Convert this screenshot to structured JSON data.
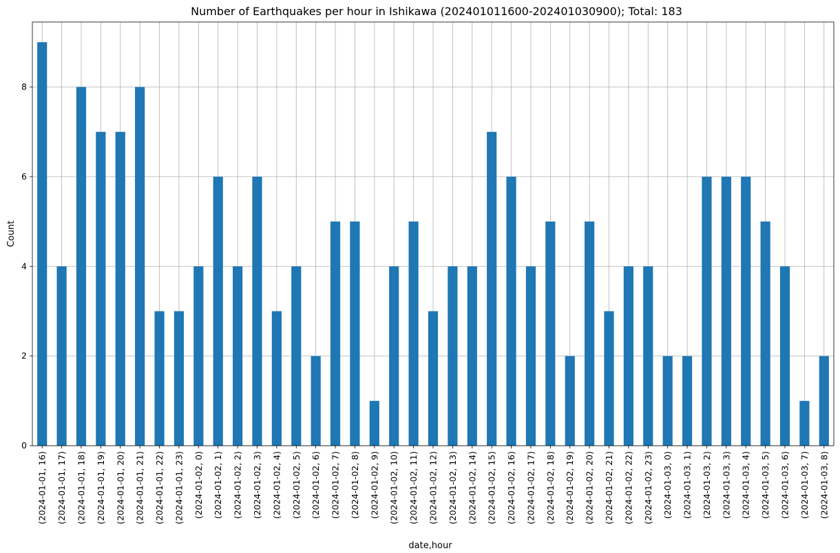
{
  "chart_data": {
    "type": "bar",
    "title": "Number of Earthquakes per hour in Ishikawa (202401011600-202401030900); Total: 183",
    "xlabel": "date,hour",
    "ylabel": "Count",
    "ylim": [
      0,
      9.45
    ],
    "yticks": [
      0,
      2,
      4,
      6,
      8
    ],
    "grid": true,
    "bar_color": "#1f77b4",
    "categories": [
      "(2024-01-01, 16)",
      "(2024-01-01, 17)",
      "(2024-01-01, 18)",
      "(2024-01-01, 19)",
      "(2024-01-01, 20)",
      "(2024-01-01, 21)",
      "(2024-01-01, 22)",
      "(2024-01-01, 23)",
      "(2024-01-02, 0)",
      "(2024-01-02, 1)",
      "(2024-01-02, 2)",
      "(2024-01-02, 3)",
      "(2024-01-02, 4)",
      "(2024-01-02, 5)",
      "(2024-01-02, 6)",
      "(2024-01-02, 7)",
      "(2024-01-02, 8)",
      "(2024-01-02, 9)",
      "(2024-01-02, 10)",
      "(2024-01-02, 11)",
      "(2024-01-02, 12)",
      "(2024-01-02, 13)",
      "(2024-01-02, 14)",
      "(2024-01-02, 15)",
      "(2024-01-02, 16)",
      "(2024-01-02, 17)",
      "(2024-01-02, 18)",
      "(2024-01-02, 19)",
      "(2024-01-02, 20)",
      "(2024-01-02, 21)",
      "(2024-01-02, 22)",
      "(2024-01-02, 23)",
      "(2024-01-03, 0)",
      "(2024-01-03, 1)",
      "(2024-01-03, 2)",
      "(2024-01-03, 3)",
      "(2024-01-03, 4)",
      "(2024-01-03, 5)",
      "(2024-01-03, 6)",
      "(2024-01-03, 7)",
      "(2024-01-03, 8)"
    ],
    "values": [
      9,
      4,
      8,
      7,
      7,
      8,
      3,
      3,
      4,
      6,
      4,
      6,
      3,
      4,
      2,
      5,
      5,
      1,
      4,
      5,
      3,
      4,
      4,
      7,
      6,
      4,
      5,
      2,
      5,
      3,
      4,
      4,
      2,
      2,
      6,
      6,
      6,
      5,
      4,
      1,
      2
    ]
  }
}
